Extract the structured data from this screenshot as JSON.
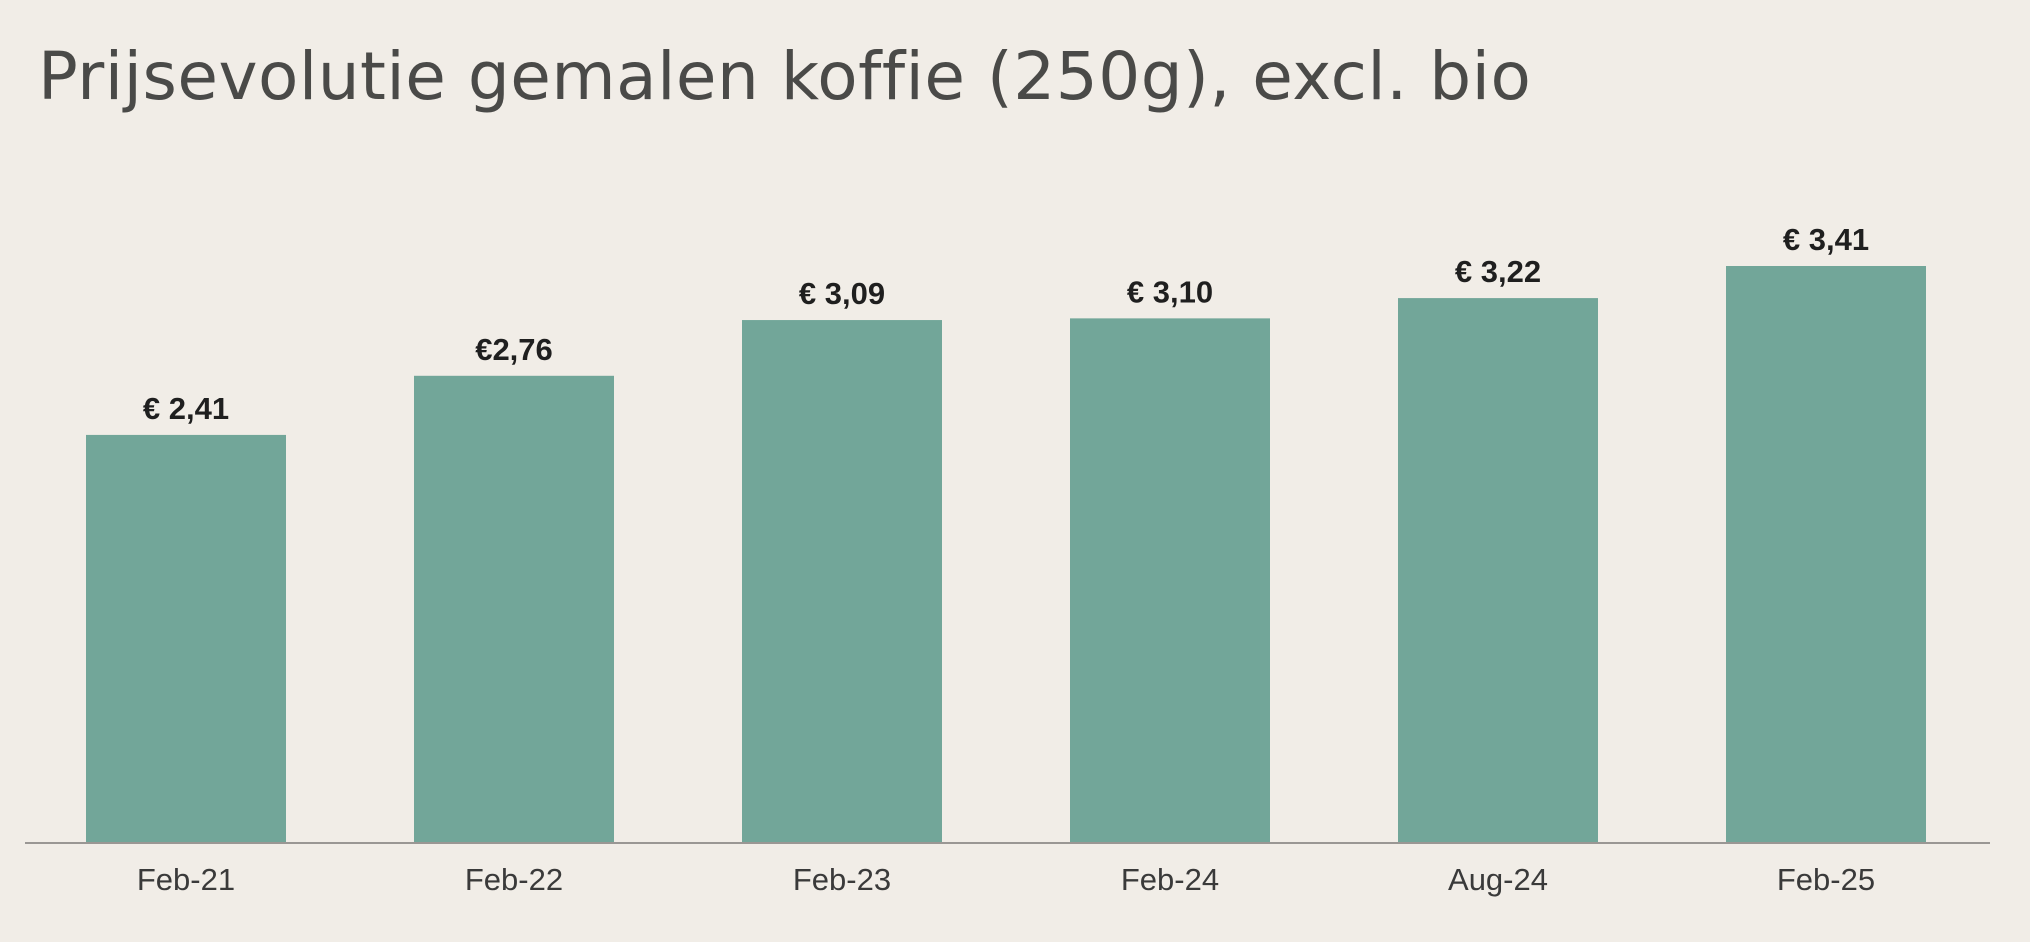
{
  "colors": {
    "background": "#f1ede7",
    "bar": "#72a699",
    "axis": "#9a9794",
    "title": "#4a4a48",
    "label": "#1f1f1f"
  },
  "chart_data": {
    "type": "bar",
    "title": "Prijsevolutie gemalen koffie (250g), excl. bio",
    "xlabel": "",
    "ylabel": "",
    "categories": [
      "Feb-21",
      "Feb-22",
      "Feb-23",
      "Feb-24",
      "Aug-24",
      "Feb-25"
    ],
    "values": [
      2.41,
      2.76,
      3.09,
      3.1,
      3.22,
      3.41
    ],
    "value_labels": [
      "€ 2,41",
      "€2,76",
      "€ 3,09",
      "€ 3,10",
      "€ 3,22",
      "€ 3,41"
    ],
    "ylim": [
      0,
      3.41
    ],
    "grid": false,
    "legend": "none",
    "y_axis_visible": false
  }
}
